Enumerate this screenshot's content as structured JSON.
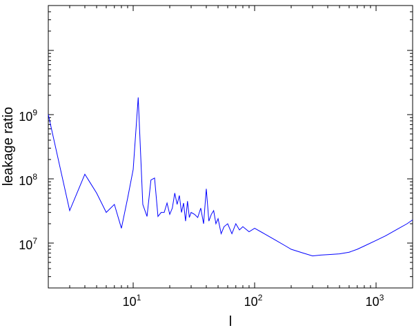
{
  "chart_data": {
    "type": "line",
    "title": "",
    "xlabel": "l",
    "ylabel": "leakage ratio",
    "x_scale": "log",
    "y_scale": "log",
    "xlim": [
      2,
      2000
    ],
    "ylim": [
      2000000,
      50000000000
    ],
    "grid": false,
    "legend": "none",
    "line_color": "#0000ff",
    "x_ticks": [
      {
        "value": 10,
        "base": "10",
        "exp": "1"
      },
      {
        "value": 100,
        "base": "10",
        "exp": "2"
      },
      {
        "value": 1000,
        "base": "10",
        "exp": "3"
      }
    ],
    "y_ticks": [
      {
        "value": 10000000,
        "base": "10",
        "exp": "7"
      },
      {
        "value": 100000000,
        "base": "10",
        "exp": "8"
      },
      {
        "value": 1000000000,
        "base": "10",
        "exp": "9"
      }
    ],
    "series": [
      {
        "x": [
          2,
          3,
          4,
          5,
          6,
          7,
          8,
          9,
          10,
          11,
          12,
          13,
          14,
          15,
          16,
          17,
          18,
          19,
          20,
          21,
          22,
          23,
          24,
          25,
          26,
          27,
          28,
          29,
          30,
          32,
          34,
          36,
          38,
          40,
          42,
          44,
          46,
          48,
          50,
          53,
          56,
          60,
          65,
          70,
          75,
          80,
          90,
          100,
          120,
          150,
          180,
          200,
          250,
          300,
          350,
          400,
          500,
          600,
          700,
          800,
          1000,
          1200,
          1500,
          1800,
          2000
        ],
        "y": [
          1000000000,
          32000000,
          118000000,
          60000000,
          30000000,
          40000000,
          17000000,
          50000000,
          140000000,
          1850000000,
          40000000,
          26000000,
          96000000,
          103000000,
          26000000,
          30000000,
          30000000,
          42000000,
          28000000,
          35000000,
          60000000,
          40000000,
          55000000,
          30000000,
          42000000,
          22000000,
          45000000,
          25000000,
          30000000,
          28000000,
          25000000,
          35000000,
          20000000,
          70000000,
          22000000,
          28000000,
          32000000,
          20000000,
          24000000,
          14000000,
          18000000,
          20000000,
          14000000,
          20000000,
          16000000,
          18000000,
          15000000,
          17000000,
          14000000,
          11000000,
          9000000,
          8000000,
          7000000,
          6300000,
          6500000,
          6600000,
          6800000,
          7200000,
          8000000,
          9000000,
          11000000,
          13000000,
          16500000,
          20000000,
          23000000
        ]
      }
    ]
  }
}
